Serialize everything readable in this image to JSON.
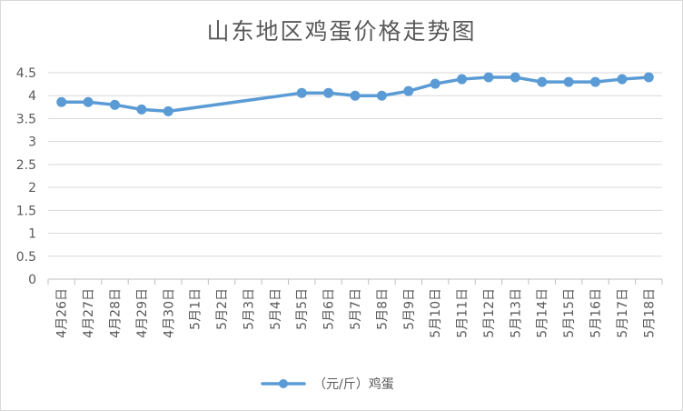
{
  "chart_data": {
    "type": "line",
    "title": "山东地区鸡蛋价格走势图",
    "xlabel": "",
    "ylabel": "",
    "ylim": [
      0,
      4.5
    ],
    "yticks": [
      "4.5",
      "4",
      "3.5",
      "3",
      "2.5",
      "2",
      "1.5",
      "1",
      "0.5",
      "0"
    ],
    "categories": [
      "4月26日",
      "4月27日",
      "4月28日",
      "4月29日",
      "4月30日",
      "5月1日",
      "5月2日",
      "5月3日",
      "5月4日",
      "5月5日",
      "5月6日",
      "5月7日",
      "5月8日",
      "5月9日",
      "5月10日",
      "5月11日",
      "5月12日",
      "5月13日",
      "5月14日",
      "5月15日",
      "5月16日",
      "5月17日",
      "5月18日"
    ],
    "series": [
      {
        "name": "（元/斤）鸡蛋",
        "color": "#5B9BD5",
        "values": [
          3.86,
          3.86,
          3.8,
          3.7,
          3.66,
          null,
          null,
          null,
          null,
          4.06,
          4.06,
          4.0,
          4.0,
          4.1,
          4.26,
          4.36,
          4.4,
          4.4,
          4.3,
          4.3,
          4.3,
          4.36,
          4.4
        ]
      }
    ],
    "grid": true,
    "legend": "bottom"
  }
}
